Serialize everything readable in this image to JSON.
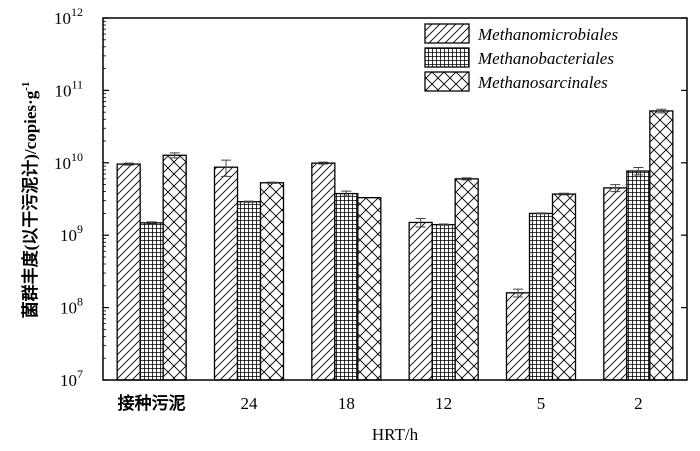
{
  "chart_data": {
    "type": "bar",
    "title": "",
    "xlabel": "HRT/h",
    "ylabel": "菌群丰度(以干污泥计)/copies·g",
    "ylabel_sup": "-1",
    "yscale": "log",
    "ylim": [
      10000000,
      1000000000000
    ],
    "yticks": [
      {
        "base": "10",
        "exp": "7",
        "value": 10000000
      },
      {
        "base": "10",
        "exp": "8",
        "value": 100000000
      },
      {
        "base": "10",
        "exp": "9",
        "value": 1000000000
      },
      {
        "base": "10",
        "exp": "10",
        "value": 10000000000
      },
      {
        "base": "10",
        "exp": "11",
        "value": 100000000000
      },
      {
        "base": "10",
        "exp": "12",
        "value": 1000000000000
      }
    ],
    "categories": [
      "接种污泥",
      "24",
      "18",
      "12",
      "5",
      "2"
    ],
    "legend_position": "top-right",
    "series": [
      {
        "name": "Methanomicrobiales",
        "pattern": "diagonal",
        "values": [
          9600000000.0,
          8700000000.0,
          9900000000.0,
          1500000000.0,
          160000000.0,
          4500000000.0
        ],
        "errors": [
          300000000.0,
          2200000000.0,
          300000000.0,
          200000000.0,
          20000000.0,
          500000000.0
        ]
      },
      {
        "name": "Methanobacteriales",
        "pattern": "grid",
        "values": [
          1480000000.0,
          2900000000.0,
          3760000000.0,
          1400000000.0,
          2000000000.0,
          7700000000.0
        ],
        "errors": [
          50000000.0,
          50000000.0,
          300000000.0,
          30000000.0,
          30000000.0,
          900000000.0
        ]
      },
      {
        "name": "Methanosarcinales",
        "pattern": "crosshatch",
        "values": [
          12700000000.0,
          5300000000.0,
          3300000000.0,
          6000000000.0,
          3700000000.0,
          52000000000.0
        ],
        "errors": [
          1000000000.0,
          100000000.0,
          0.0,
          200000000.0,
          100000000.0,
          3000000000.0
        ]
      }
    ]
  }
}
